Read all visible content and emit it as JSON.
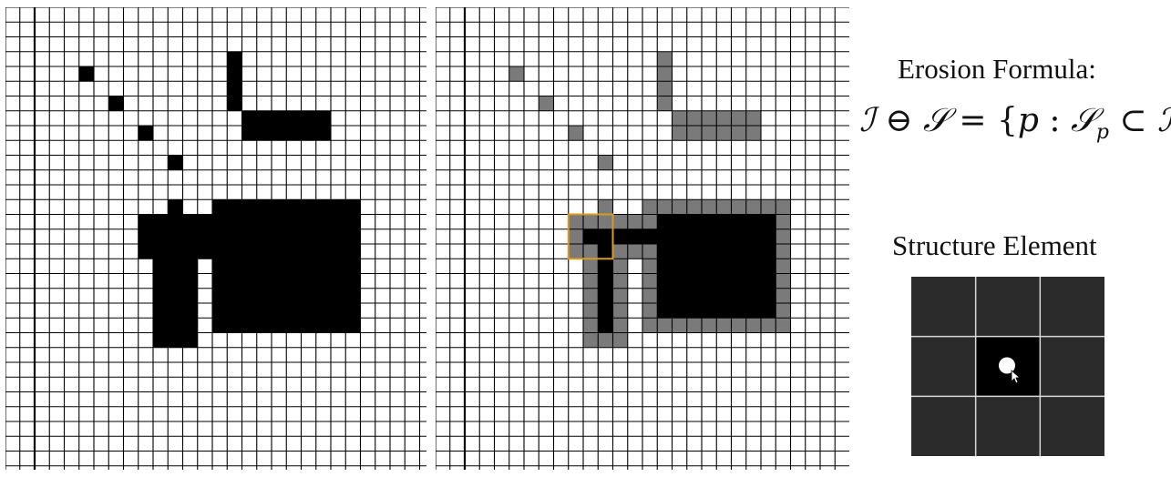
{
  "erosion_title": "Erosion Formula:",
  "formula": {
    "I": "ℐ",
    "ominus": "⊖",
    "S": "𝒮",
    "eq": "=",
    "lbrace": "{",
    "p": "p",
    "colon": ":",
    "Sp_base": "𝒮",
    "Sp_sub": "p",
    "subset": "⊂",
    "I2": "ℐ",
    "rbrace": "}"
  },
  "structure_title": "Structure Element",
  "colors": {
    "foreground": "#000000",
    "eroded_away": "#7a7a7a",
    "grid_line": "#000000",
    "highlight": "#d99a1e",
    "structure_bg": "#2b2b2b",
    "structure_center": "#000000"
  },
  "input_image": {
    "rows": [
      "",
      "",
      "",
      "........#.....",
      "...#....#.....",
      "........#.....",
      "....#...######",
      "........######",
      ".....#..........",
      "......#.........",
      "",
      "",
      "",
      "",
      ""
    ]
  }
}
